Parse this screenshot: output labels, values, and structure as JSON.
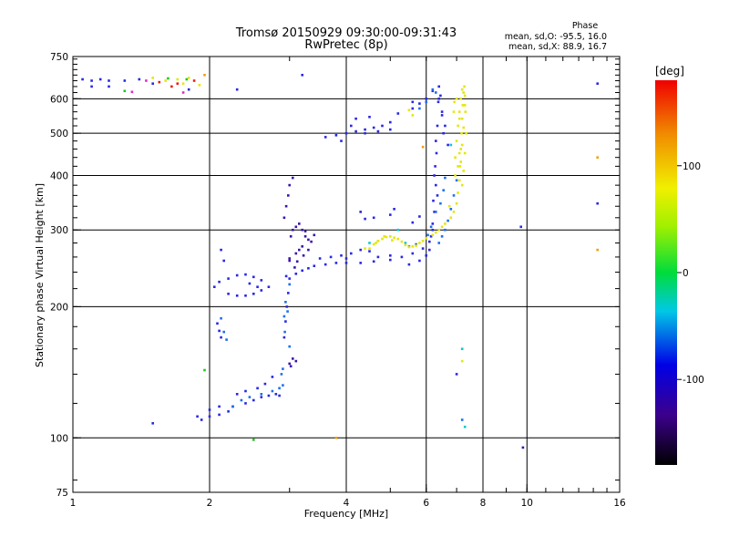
{
  "chart_data": {
    "type": "scatter",
    "title_line1": "Tromsø 20150929 09:30:00-09:31:43",
    "title_line2": "RwPretec (8p)",
    "phase_block": {
      "heading": "Phase",
      "line1": "mean, sd,O: -95.5, 16.0",
      "line2": "mean, sd,X:  88.9, 16.7"
    },
    "xlabel": "Frequency [MHz]",
    "ylabel": "Stationary phase Virtual Height [km]",
    "x_scale": "log",
    "y_scale": "log",
    "xlim": [
      1,
      16
    ],
    "ylim": [
      75,
      750
    ],
    "x_ticks": [
      1,
      2,
      4,
      6,
      8,
      10,
      16
    ],
    "y_ticks": [
      75,
      100,
      200,
      300,
      400,
      500,
      600,
      750
    ],
    "x_grid": [
      2,
      4,
      6,
      8,
      10
    ],
    "y_grid": [
      100,
      200,
      300,
      400,
      500,
      600
    ],
    "grid": true,
    "colorbar": {
      "label": "[deg]",
      "range": [
        -180,
        180
      ],
      "ticks": [
        100,
        0,
        -100
      ],
      "colormap": "rainbow"
    },
    "series": [
      {
        "color": "#2828e6",
        "points": [
          [
            1.05,
            665
          ],
          [
            1.1,
            660
          ],
          [
            1.15,
            665
          ],
          [
            1.2,
            660
          ],
          [
            1.3,
            660
          ],
          [
            1.4,
            665
          ],
          [
            1.1,
            640
          ],
          [
            1.2,
            640
          ],
          [
            1.5,
            650
          ],
          [
            1.8,
            630
          ],
          [
            1.5,
            108
          ],
          [
            1.88,
            112
          ],
          [
            1.92,
            110
          ],
          [
            2.0,
            112
          ],
          [
            2.1,
            113
          ],
          [
            2.2,
            115
          ],
          [
            2.0,
            116
          ],
          [
            2.1,
            118
          ],
          [
            2.25,
            118
          ],
          [
            2.4,
            120
          ],
          [
            2.5,
            122
          ],
          [
            2.6,
            124
          ],
          [
            2.7,
            125
          ],
          [
            2.8,
            126
          ],
          [
            2.85,
            125
          ],
          [
            2.3,
            126
          ],
          [
            2.4,
            128
          ],
          [
            2.55,
            130
          ],
          [
            2.65,
            133
          ],
          [
            2.75,
            138
          ],
          [
            2.05,
            222
          ],
          [
            2.1,
            228
          ],
          [
            2.2,
            232
          ],
          [
            2.3,
            236
          ],
          [
            2.4,
            237
          ],
          [
            2.5,
            234
          ],
          [
            2.6,
            230
          ],
          [
            2.2,
            214
          ],
          [
            2.3,
            212
          ],
          [
            2.4,
            212
          ],
          [
            2.5,
            214
          ],
          [
            2.6,
            218
          ],
          [
            2.7,
            222
          ],
          [
            2.45,
            226
          ],
          [
            2.55,
            222
          ],
          [
            2.15,
            255
          ],
          [
            2.12,
            270
          ],
          [
            2.08,
            183
          ],
          [
            2.1,
            176
          ],
          [
            2.12,
            170
          ],
          [
            2.92,
            170
          ],
          [
            2.94,
            185
          ],
          [
            2.96,
            200
          ],
          [
            2.98,
            215
          ],
          [
            2.95,
            235
          ],
          [
            3.0,
            232
          ],
          [
            3.1,
            238
          ],
          [
            3.2,
            242
          ],
          [
            3.3,
            245
          ],
          [
            3.4,
            248
          ],
          [
            3.6,
            250
          ],
          [
            3.8,
            252
          ],
          [
            4.0,
            252
          ],
          [
            4.3,
            252
          ],
          [
            4.6,
            254
          ],
          [
            5.0,
            256
          ],
          [
            5.3,
            260
          ],
          [
            5.6,
            265
          ],
          [
            5.9,
            272
          ],
          [
            6.1,
            282
          ],
          [
            6.2,
            300
          ],
          [
            6.25,
            330
          ],
          [
            6.3,
            380
          ],
          [
            6.32,
            450
          ],
          [
            6.35,
            520
          ],
          [
            6.38,
            590
          ],
          [
            6.4,
            640
          ],
          [
            6.45,
            610
          ],
          [
            6.5,
            560
          ],
          [
            6.3,
            480
          ],
          [
            6.28,
            420
          ],
          [
            6.35,
            360
          ],
          [
            3.6,
            490
          ],
          [
            3.8,
            495
          ],
          [
            4.0,
            500
          ],
          [
            4.2,
            505
          ],
          [
            4.4,
            510
          ],
          [
            4.6,
            515
          ],
          [
            4.8,
            520
          ],
          [
            5.0,
            530
          ],
          [
            4.2,
            540
          ],
          [
            4.5,
            545
          ],
          [
            5.2,
            555
          ],
          [
            5.6,
            570
          ],
          [
            5.8,
            585
          ],
          [
            6.0,
            600
          ],
          [
            6.2,
            625
          ],
          [
            3.9,
            480
          ],
          [
            4.1,
            520
          ],
          [
            4.4,
            500
          ],
          [
            4.7,
            505
          ],
          [
            5.0,
            510
          ],
          [
            3.7,
            260
          ],
          [
            3.9,
            262
          ],
          [
            4.1,
            265
          ],
          [
            4.3,
            270
          ],
          [
            4.5,
            268
          ],
          [
            3.5,
            258
          ],
          [
            4.0,
            258
          ],
          [
            4.7,
            260
          ],
          [
            5.0,
            262
          ],
          [
            5.5,
            250
          ],
          [
            5.8,
            255
          ],
          [
            6.0,
            262
          ],
          [
            6.1,
            270
          ],
          [
            6.15,
            290
          ],
          [
            6.2,
            310
          ],
          [
            6.22,
            350
          ],
          [
            6.25,
            400
          ],
          [
            6.4,
            600
          ],
          [
            6.5,
            550
          ],
          [
            6.55,
            500
          ],
          [
            3.2,
            680
          ],
          [
            5.6,
            590
          ],
          [
            6.6,
            520
          ],
          [
            6.7,
            470
          ],
          [
            2.3,
            630
          ],
          [
            14.3,
            650
          ],
          [
            14.3,
            345
          ],
          [
            9.7,
            305
          ],
          [
            7.0,
            140
          ],
          [
            4.3,
            330
          ],
          [
            4.4,
            318
          ],
          [
            4.6,
            320
          ],
          [
            5.0,
            325
          ],
          [
            5.1,
            335
          ],
          [
            5.6,
            312
          ],
          [
            5.8,
            322
          ]
        ]
      },
      {
        "color": "#3c14aa",
        "points": [
          [
            3.0,
            148
          ],
          [
            3.1,
            150
          ],
          [
            3.05,
            152
          ],
          [
            3.02,
            146
          ],
          [
            2.92,
            320
          ],
          [
            2.95,
            340
          ],
          [
            2.98,
            360
          ],
          [
            3.0,
            380
          ],
          [
            3.05,
            395
          ],
          [
            3.02,
            290
          ],
          [
            3.05,
            300
          ],
          [
            3.1,
            305
          ],
          [
            3.15,
            310
          ],
          [
            3.2,
            300
          ],
          [
            3.25,
            290
          ],
          [
            3.3,
            285
          ],
          [
            3.2,
            275
          ],
          [
            3.15,
            270
          ],
          [
            3.1,
            265
          ],
          [
            3.0,
            258
          ],
          [
            3.3,
            270
          ],
          [
            3.35,
            282
          ],
          [
            3.4,
            292
          ],
          [
            3.25,
            298
          ],
          [
            3.0,
            255
          ],
          [
            3.08,
            246
          ],
          [
            3.12,
            254
          ],
          [
            3.22,
            262
          ],
          [
            9.8,
            95
          ]
        ]
      },
      {
        "color": "#1e6ef0",
        "points": [
          [
            2.25,
            118
          ],
          [
            2.35,
            122
          ],
          [
            2.45,
            124
          ],
          [
            2.6,
            126
          ],
          [
            2.75,
            128
          ],
          [
            2.85,
            130
          ],
          [
            2.9,
            132
          ],
          [
            2.12,
            188
          ],
          [
            2.15,
            175
          ],
          [
            2.18,
            168
          ],
          [
            2.92,
            190
          ],
          [
            2.94,
            205
          ],
          [
            3.0,
            225
          ],
          [
            2.88,
            140
          ],
          [
            2.9,
            144
          ],
          [
            5.8,
            570
          ],
          [
            6.0,
            590
          ],
          [
            6.2,
            630
          ],
          [
            6.3,
            620
          ],
          [
            6.4,
            280
          ],
          [
            6.5,
            290
          ],
          [
            6.6,
            300
          ],
          [
            6.7,
            315
          ],
          [
            6.8,
            335
          ],
          [
            5.5,
            275
          ],
          [
            5.7,
            278
          ],
          [
            6.05,
            292
          ],
          [
            6.15,
            305
          ],
          [
            6.3,
            330
          ],
          [
            6.45,
            345
          ],
          [
            6.55,
            370
          ],
          [
            6.6,
            395
          ],
          [
            7.2,
            110
          ],
          [
            6.9,
            360
          ],
          [
            7.0,
            390
          ],
          [
            3.0,
            162
          ],
          [
            2.93,
            175
          ],
          [
            2.97,
            195
          ]
        ]
      },
      {
        "color": "#0ac8d2",
        "points": [
          [
            4.5,
            280
          ],
          [
            4.7,
            283
          ],
          [
            5.2,
            300
          ],
          [
            6.8,
            470
          ],
          [
            7.3,
            106
          ],
          [
            7.2,
            160
          ],
          [
            5.4,
            280
          ]
        ]
      },
      {
        "color": "#e6e60a",
        "points": [
          [
            4.5,
            272
          ],
          [
            4.6,
            278
          ],
          [
            4.7,
            283
          ],
          [
            4.8,
            286
          ],
          [
            4.9,
            289
          ],
          [
            5.0,
            290
          ],
          [
            5.1,
            288
          ],
          [
            5.2,
            286
          ],
          [
            5.3,
            282
          ],
          [
            5.4,
            277
          ],
          [
            5.5,
            274
          ],
          [
            5.6,
            275
          ],
          [
            5.7,
            276
          ],
          [
            5.8,
            280
          ],
          [
            5.9,
            283
          ],
          [
            6.0,
            287
          ],
          [
            6.2,
            292
          ],
          [
            6.4,
            300
          ],
          [
            6.6,
            310
          ],
          [
            6.8,
            320
          ],
          [
            6.9,
            330
          ],
          [
            7.0,
            345
          ],
          [
            7.05,
            365
          ],
          [
            7.1,
            390
          ],
          [
            7.12,
            420
          ],
          [
            7.15,
            460
          ],
          [
            7.18,
            500
          ],
          [
            7.2,
            540
          ],
          [
            7.22,
            580
          ],
          [
            7.25,
            620
          ],
          [
            7.28,
            640
          ],
          [
            7.3,
            610
          ],
          [
            7.32,
            560
          ],
          [
            7.35,
            500
          ],
          [
            7.3,
            450
          ],
          [
            7.25,
            410
          ],
          [
            7.2,
            380
          ],
          [
            6.95,
            440
          ],
          [
            7.0,
            480
          ],
          [
            7.05,
            520
          ],
          [
            7.1,
            560
          ],
          [
            7.15,
            600
          ],
          [
            7.2,
            630
          ],
          [
            6.9,
            560
          ],
          [
            6.92,
            590
          ],
          [
            7.0,
            600
          ],
          [
            4.4,
            272
          ],
          [
            4.65,
            280
          ],
          [
            4.85,
            290
          ],
          [
            5.05,
            284
          ],
          [
            7.3,
            580
          ],
          [
            7.2,
            470
          ],
          [
            7.15,
            430
          ],
          [
            7.1,
            540
          ],
          [
            6.95,
            400
          ],
          [
            6.75,
            340
          ],
          [
            6.5,
            305
          ],
          [
            6.3,
            296
          ],
          [
            5.6,
            550
          ],
          [
            7.2,
            150
          ],
          [
            1.5,
            670
          ],
          [
            1.6,
            660
          ],
          [
            1.7,
            665
          ],
          [
            1.75,
            650
          ],
          [
            1.8,
            670
          ],
          [
            1.9,
            645
          ],
          [
            5.5,
            565
          ],
          [
            7.05,
            420
          ],
          [
            7.1,
            450
          ],
          [
            7.25,
            515
          ]
        ]
      },
      {
        "color": "#f0a00a",
        "points": [
          [
            14.3,
            440
          ],
          [
            14.3,
            270
          ],
          [
            3.8,
            100
          ],
          [
            5.9,
            465
          ],
          [
            1.95,
            680
          ]
        ]
      },
      {
        "color": "#e61e0a",
        "points": [
          [
            1.55,
            655
          ],
          [
            1.7,
            650
          ],
          [
            1.85,
            660
          ],
          [
            1.65,
            640
          ]
        ]
      },
      {
        "color": "#1ec81e",
        "points": [
          [
            1.3,
            625
          ],
          [
            1.62,
            668
          ],
          [
            1.78,
            665
          ],
          [
            2.5,
            99
          ],
          [
            1.95,
            143
          ]
        ]
      },
      {
        "color": "#e628c8",
        "points": [
          [
            1.75,
            620
          ],
          [
            1.35,
            622
          ],
          [
            1.45,
            660
          ]
        ]
      }
    ]
  }
}
